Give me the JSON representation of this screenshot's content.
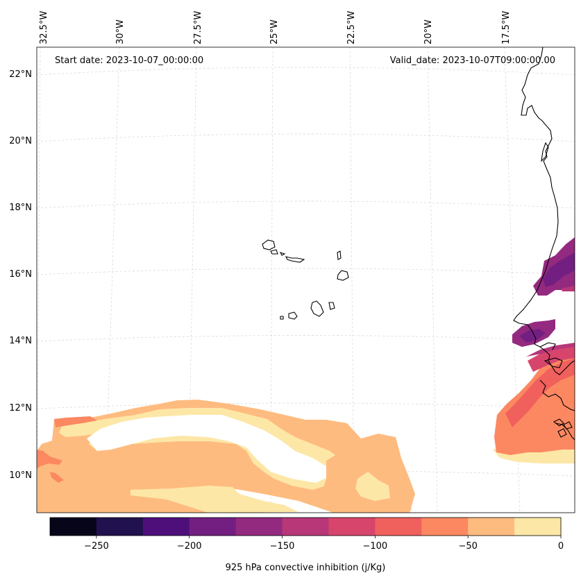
{
  "map": {
    "start_date": "Start date: 2023-10-07_00:00:00",
    "valid_date": "Valid_date: 2023-10-07T09:00:00.00",
    "variable": "925 hPa convective inhibition",
    "lon_ticks": [
      "32.5°W",
      "30°W",
      "27.5°W",
      "25°W",
      "22.5°W",
      "20°W",
      "17.5°W"
    ],
    "lat_ticks": [
      "22°N",
      "20°N",
      "18°N",
      "16°N",
      "14°N",
      "12°N",
      "10°N"
    ],
    "lat_values": [
      22,
      20,
      18,
      16,
      14,
      12,
      10
    ],
    "lon_values": [
      -32.5,
      -30,
      -27.5,
      -25,
      -22.5,
      -20,
      -17.5
    ],
    "features": [
      "Cape Verde Islands",
      "West African coastline"
    ]
  },
  "colorbar": {
    "label": "925 hPa convective inhibition (j/Kg)",
    "tick_labels": [
      "−250",
      "−200",
      "−150",
      "−100",
      "−50",
      "0"
    ],
    "tick_values": [
      -250,
      -200,
      -150,
      -100,
      -50,
      0
    ],
    "levels": [
      -275,
      -250,
      -225,
      -200,
      -175,
      -150,
      -125,
      -100,
      -75,
      -50,
      -25,
      0
    ],
    "colors": [
      "#06051a",
      "#21114e",
      "#4e0f7b",
      "#731f81",
      "#942a80",
      "#b73779",
      "#d8456c",
      "#f0605d",
      "#fb8861",
      "#febb80",
      "#fde7a7"
    ]
  },
  "chart_data": {
    "type": "heatmap",
    "title": "",
    "colorbar_label": "925 hPa convective inhibition (j/Kg)",
    "value_range": [
      -275,
      0
    ],
    "regions": [
      {
        "area": "south-west band near 10-12°N, 32.5-20°W",
        "level_range": [
          -50,
          0
        ]
      },
      {
        "area": "south-central near 9-11°N, 22-21°W",
        "level_range": [
          -50,
          -25
        ]
      },
      {
        "area": "west African coast 10-13°N",
        "level_range": [
          -100,
          -50
        ]
      },
      {
        "area": "coast near 13-14°N",
        "level_range": [
          -175,
          -125
        ]
      },
      {
        "area": "inland near 15-16.5°N",
        "level_range": [
          -200,
          -150
        ]
      }
    ]
  }
}
